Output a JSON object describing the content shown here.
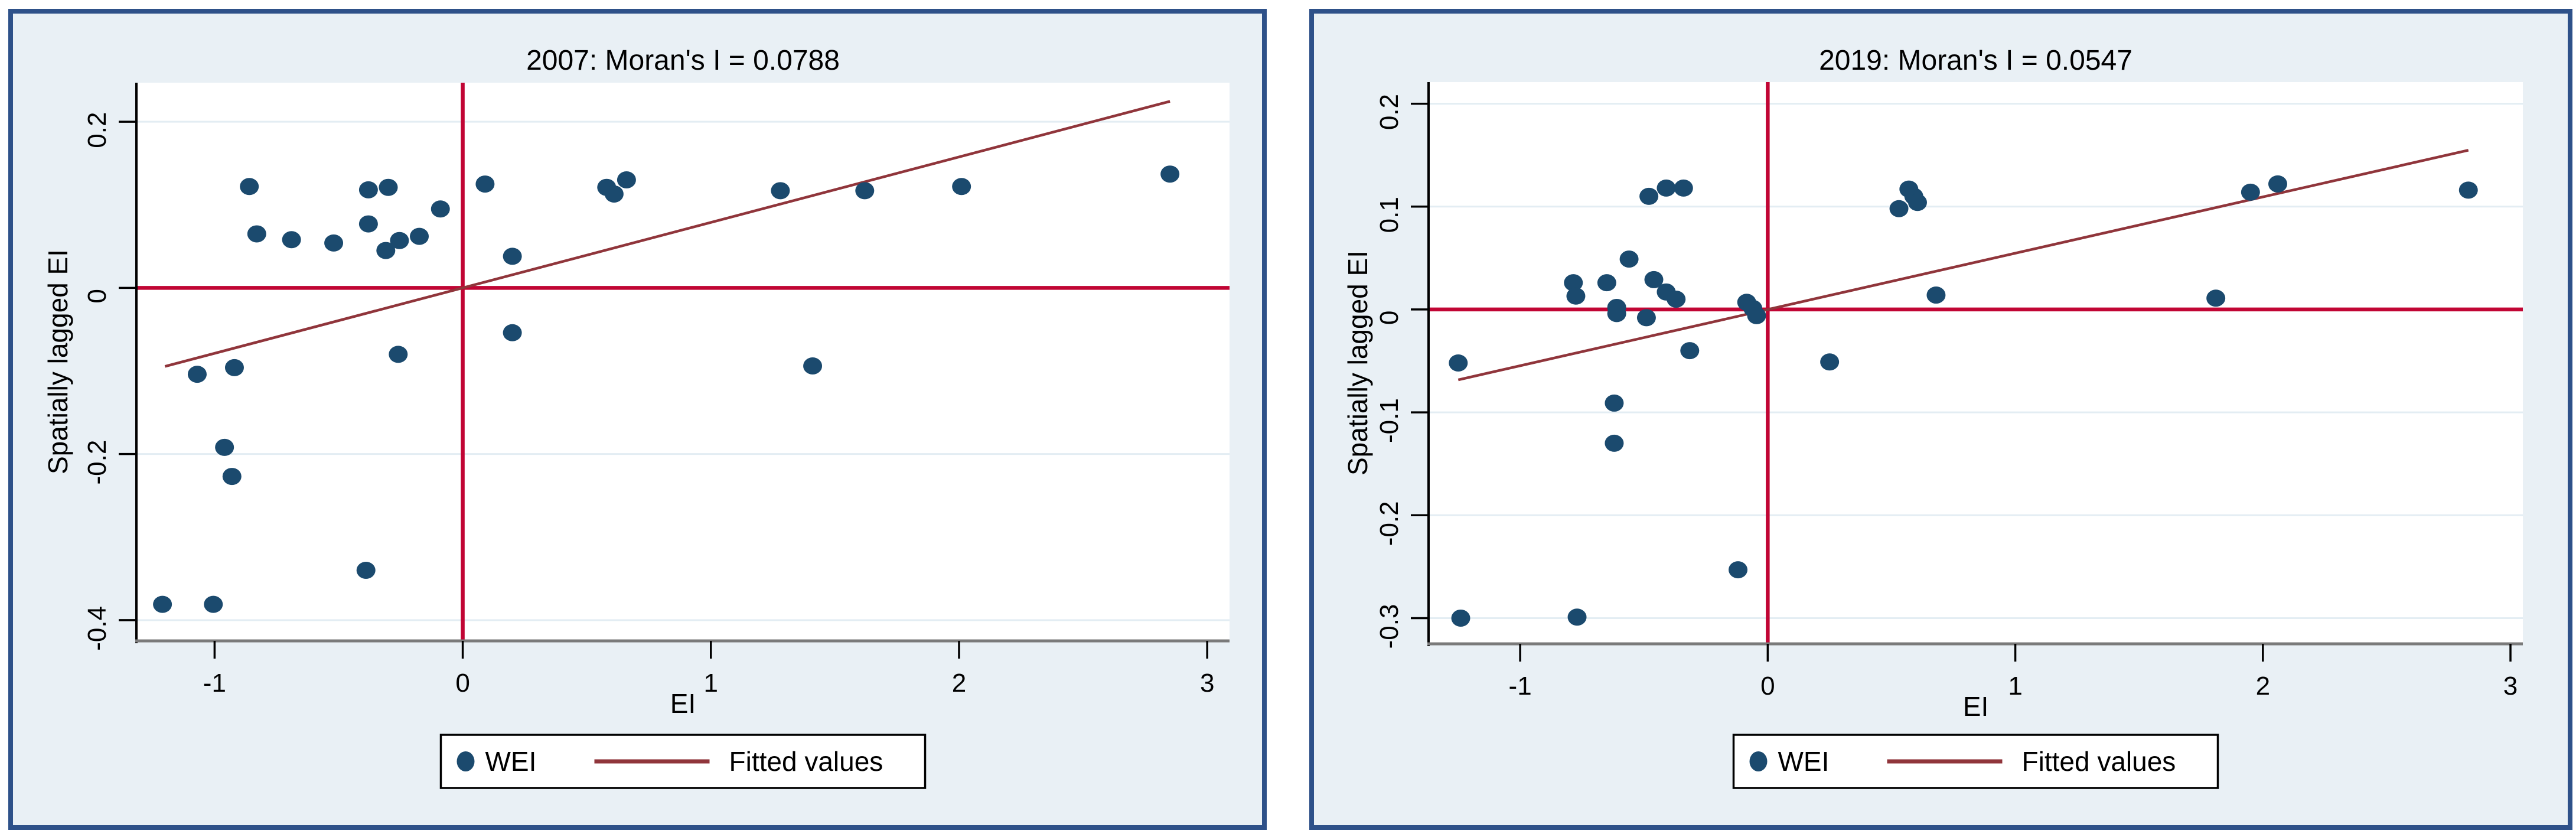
{
  "colors": {
    "marker": "#1b4a6e",
    "fitted_line": "#90353b",
    "reference_line": "#c10534",
    "figure_background": "#e9f0f5",
    "plot_background": "#ffffff",
    "gridline": "#e3edf3",
    "figure_border": "#2e5189",
    "left_spine": "#000000",
    "bottom_axis": "#7a7a7a",
    "tick": "#000000",
    "legend_border": "#000000",
    "legend_background": "#ffffff",
    "text": "#000000"
  },
  "chart_data": [
    {
      "type": "scatter",
      "title": "2007: Moran's I = 0.0788",
      "xlabel": "EI",
      "ylabel": "Spatially lagged EI",
      "xlim": [
        -1.315,
        3.09
      ],
      "ylim": [
        -0.425,
        0.247
      ],
      "xticks": [
        -1,
        0,
        1,
        2,
        3
      ],
      "xtick_labels": [
        "-1",
        "0",
        "1",
        "2",
        "3"
      ],
      "yticks": [
        0.2,
        0,
        -0.2,
        -0.4
      ],
      "ytick_labels": [
        "0.2",
        "0",
        "-0.2",
        "-0.4"
      ],
      "grid": "horizontal",
      "reference_lines": {
        "x": 0,
        "y": 0
      },
      "fit_line": {
        "slope": 0.0788,
        "intercept": 0,
        "x_start": -1.2,
        "x_end": 2.85
      },
      "legend": {
        "position": "bottom-center",
        "entries": [
          {
            "label": "WEI",
            "type": "marker"
          },
          {
            "label": "Fitted values",
            "type": "line"
          }
        ]
      },
      "series": [
        {
          "name": "WEI",
          "points": [
            [
              -1.21,
              -0.381
            ],
            [
              -1.005,
              -0.381
            ],
            [
              -1.07,
              -0.104
            ],
            [
              -0.92,
              -0.096
            ],
            [
              -0.96,
              -0.192
            ],
            [
              -0.93,
              -0.227
            ],
            [
              -0.86,
              0.122
            ],
            [
              -0.83,
              0.065
            ],
            [
              -0.69,
              0.058
            ],
            [
              -0.52,
              0.054
            ],
            [
              -0.39,
              -0.34
            ],
            [
              -0.38,
              0.118
            ],
            [
              -0.38,
              0.077
            ],
            [
              -0.3,
              0.121
            ],
            [
              -0.31,
              0.045
            ],
            [
              -0.255,
              0.057
            ],
            [
              -0.26,
              -0.08
            ],
            [
              -0.175,
              0.062
            ],
            [
              -0.09,
              0.095
            ],
            [
              0.09,
              0.125
            ],
            [
              0.2,
              0.038
            ],
            [
              0.2,
              -0.054
            ],
            [
              0.58,
              0.121
            ],
            [
              0.61,
              0.113
            ],
            [
              0.66,
              0.13
            ],
            [
              1.28,
              0.117
            ],
            [
              1.41,
              -0.094
            ],
            [
              1.62,
              0.117
            ],
            [
              2.01,
              0.122
            ],
            [
              2.85,
              0.137
            ]
          ]
        }
      ]
    },
    {
      "type": "scatter",
      "title": "2019: Moran's I = 0.0547",
      "xlabel": "EI",
      "ylabel": "Spatially lagged EI",
      "xlim": [
        -1.37,
        3.05
      ],
      "ylim": [
        -0.325,
        0.221
      ],
      "xticks": [
        -1,
        0,
        1,
        2,
        3
      ],
      "xtick_labels": [
        "-1",
        "0",
        "1",
        "2",
        "3"
      ],
      "yticks": [
        0.2,
        0.1,
        0,
        -0.1,
        -0.2,
        -0.3
      ],
      "ytick_labels": [
        "0.2",
        "0.1",
        "0",
        "-0.1",
        "-0.2",
        "-0.3"
      ],
      "grid": "horizontal",
      "reference_lines": {
        "x": 0,
        "y": 0
      },
      "fit_line": {
        "slope": 0.0547,
        "intercept": 0,
        "x_start": -1.25,
        "x_end": 2.83
      },
      "legend": {
        "position": "bottom-center",
        "entries": [
          {
            "label": "WEI",
            "type": "marker"
          },
          {
            "label": "Fitted values",
            "type": "line"
          }
        ]
      },
      "series": [
        {
          "name": "WEI",
          "points": [
            [
              -1.25,
              -0.052
            ],
            [
              -1.24,
              -0.3
            ],
            [
              -0.77,
              -0.299
            ],
            [
              -0.785,
              0.026
            ],
            [
              -0.775,
              0.013
            ],
            [
              -0.65,
              0.026
            ],
            [
              -0.61,
              0.002
            ],
            [
              -0.61,
              -0.004
            ],
            [
              -0.62,
              -0.091
            ],
            [
              -0.62,
              -0.13
            ],
            [
              -0.56,
              0.049
            ],
            [
              -0.49,
              -0.008
            ],
            [
              -0.48,
              0.11
            ],
            [
              -0.41,
              0.118
            ],
            [
              -0.34,
              0.118
            ],
            [
              -0.46,
              0.029
            ],
            [
              -0.41,
              0.017
            ],
            [
              -0.37,
              0.01
            ],
            [
              -0.315,
              -0.04
            ],
            [
              -0.085,
              0.007
            ],
            [
              -0.06,
              0.001
            ],
            [
              -0.045,
              -0.006
            ],
            [
              -0.12,
              -0.253
            ],
            [
              0.25,
              -0.051
            ],
            [
              0.53,
              0.098
            ],
            [
              0.57,
              0.117
            ],
            [
              0.59,
              0.11
            ],
            [
              0.605,
              0.104
            ],
            [
              0.68,
              0.014
            ],
            [
              1.81,
              0.011
            ],
            [
              1.95,
              0.114
            ],
            [
              2.06,
              0.122
            ],
            [
              2.83,
              0.116
            ]
          ]
        }
      ]
    }
  ]
}
